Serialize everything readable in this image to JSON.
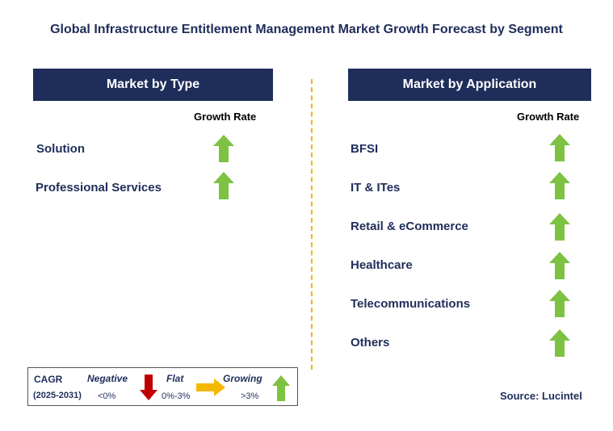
{
  "title": "Global Infrastructure Entitlement Management Market Growth Forecast by Segment",
  "type_panel": {
    "header": "Market by Type",
    "growth_label": "Growth Rate",
    "rows": [
      {
        "label": "Solution",
        "trend": "growing"
      },
      {
        "label": "Professional Services",
        "trend": "growing"
      }
    ]
  },
  "application_panel": {
    "header": "Market by Application",
    "growth_label": "Growth Rate",
    "rows": [
      {
        "label": "BFSI",
        "trend": "growing"
      },
      {
        "label": "IT & ITes",
        "trend": "growing"
      },
      {
        "label": "Retail & eCommerce",
        "trend": "growing"
      },
      {
        "label": "Healthcare",
        "trend": "growing"
      },
      {
        "label": "Telecommunications",
        "trend": "growing"
      },
      {
        "label": "Others",
        "trend": "growing"
      }
    ]
  },
  "legend": {
    "cagr": "CAGR",
    "period": "(2025-2031)",
    "negative": {
      "label": "Negative",
      "range": "<0%"
    },
    "flat": {
      "label": "Flat",
      "range": "0%-3%"
    },
    "growing": {
      "label": "Growing",
      "range": ">3%"
    }
  },
  "source": "Source: Lucintel",
  "colors": {
    "navy": "#1f2d5a",
    "arrow_green": "#7dc242",
    "arrow_red": "#c00000",
    "arrow_yellow": "#f5b800",
    "divider": "#f2b600"
  }
}
